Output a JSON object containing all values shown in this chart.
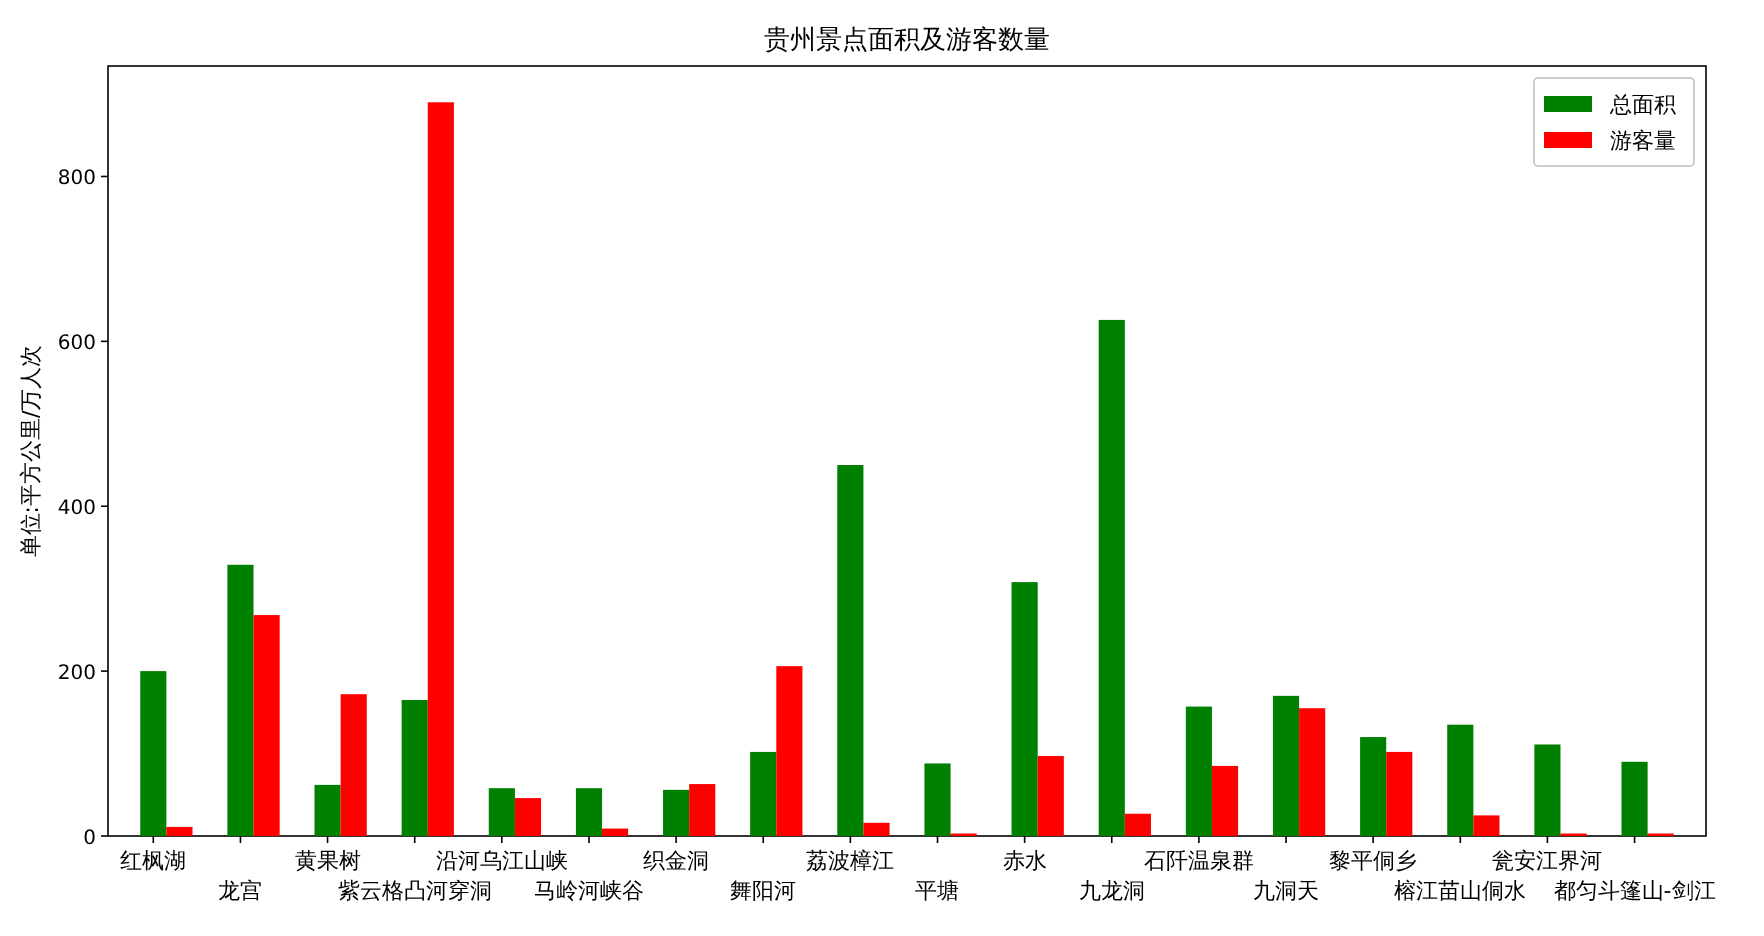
{
  "chart_data": {
    "type": "bar",
    "title": "贵州景点面积及游客数量",
    "ylabel": "单位:平方公里/万人次",
    "categories": [
      "红枫湖",
      "龙宫",
      "黄果树",
      "紫云格凸河穿洞",
      "沿河乌江山峡",
      "马岭河峡谷",
      "织金洞",
      "舞阳河",
      "荔波樟江",
      "平塘",
      "赤水",
      "九龙洞",
      "石阡温泉群",
      "九洞天",
      "黎平侗乡",
      "榕江苗山侗水",
      "瓮安江界河",
      "都匀斗篷山-剑江"
    ],
    "series": [
      {
        "name": "总面积",
        "color": "#008000",
        "values": [
          200,
          329,
          62,
          165,
          58,
          58,
          56,
          102,
          450,
          88,
          308,
          626,
          157,
          170,
          120,
          135,
          111,
          90
        ]
      },
      {
        "name": "游客量",
        "color": "#ff0000",
        "values": [
          11,
          268,
          172,
          890,
          46,
          9,
          63,
          206,
          16,
          3,
          97,
          27,
          85,
          155,
          102,
          25,
          3,
          3
        ]
      }
    ],
    "ylim": [
      0,
      934
    ],
    "yticks": [
      0,
      200,
      400,
      600,
      800
    ],
    "legend": "top right"
  }
}
